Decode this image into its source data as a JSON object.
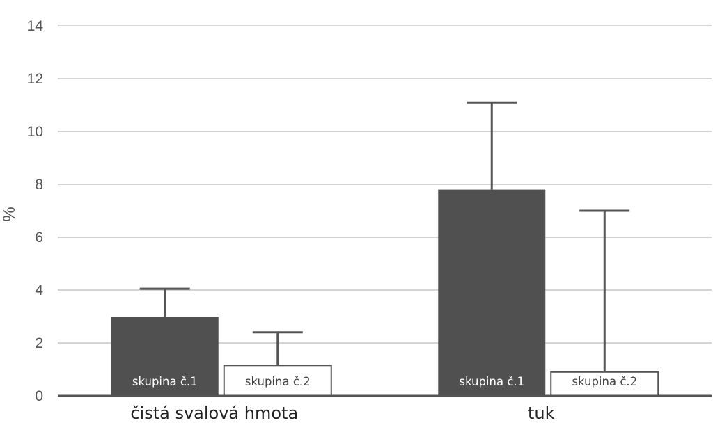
{
  "chart_data": {
    "type": "bar",
    "ylabel": "%",
    "ylim": [
      0,
      14
    ],
    "yticks": [
      0,
      2,
      4,
      6,
      8,
      10,
      12,
      14
    ],
    "grid": true,
    "categories": [
      "čistá svalová hmota",
      "tuk"
    ],
    "series": [
      {
        "name": "skupina č.1",
        "values": [
          3.0,
          7.8
        ],
        "error_upper": [
          4.05,
          11.1
        ],
        "color": "#505050"
      },
      {
        "name": "skupina č.2",
        "values": [
          1.15,
          0.9
        ],
        "error_upper": [
          2.4,
          7.0
        ],
        "color": "#ffffff"
      }
    ],
    "colors": {
      "axis": "#555555",
      "grid": "#bbbbbb",
      "text": "#222222"
    }
  }
}
